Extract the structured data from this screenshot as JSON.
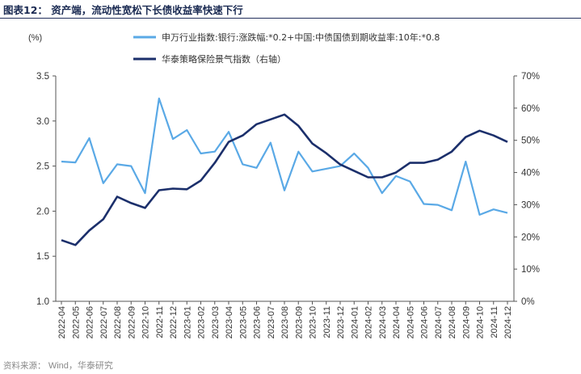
{
  "title": "图表12：  资产端，流动性宽松下长债收益率快速下行",
  "source": {
    "label": "资料来源：",
    "text": "Wind，华泰研究"
  },
  "colors": {
    "series1": "#5aa9e6",
    "series2": "#1b2f6b",
    "title": "#1a2a52"
  },
  "chart_data": {
    "type": "line",
    "left_unit": "(%)",
    "ylim_left": [
      1.0,
      3.5
    ],
    "yticks_left": [
      "1.0",
      "1.5",
      "2.0",
      "2.5",
      "3.0",
      "3.5"
    ],
    "ylim_right": [
      0,
      70
    ],
    "yticks_right": [
      "0%",
      "10%",
      "20%",
      "30%",
      "40%",
      "50%",
      "60%",
      "70%"
    ],
    "legend_position": "top",
    "grid": false,
    "categories": [
      "2022-04",
      "2022-05",
      "2022-06",
      "2022-07",
      "2022-08",
      "2022-09",
      "2022-10",
      "2022-11",
      "2022-12",
      "2023-01",
      "2023-02",
      "2023-03",
      "2023-04",
      "2023-05",
      "2023-06",
      "2023-07",
      "2023-08",
      "2023-09",
      "2023-10",
      "2023-11",
      "2023-12",
      "2024-01",
      "2024-02",
      "2024-03",
      "2024-04",
      "2024-05",
      "2024-06",
      "2024-07",
      "2024-08",
      "2024-09",
      "2024-10",
      "2024-11",
      "2024-12"
    ],
    "series": [
      {
        "name": "申万行业指数:银行:涨跌幅:*0.2+中国:中债国债到期收益率:10年:*0.8",
        "axis": "left",
        "values": [
          2.55,
          2.54,
          2.81,
          2.31,
          2.52,
          2.5,
          2.2,
          3.25,
          2.8,
          2.9,
          2.64,
          2.66,
          2.88,
          2.52,
          2.48,
          2.76,
          2.23,
          2.66,
          2.44,
          2.47,
          2.5,
          2.64,
          2.48,
          2.2,
          2.39,
          2.33,
          2.08,
          2.07,
          2.01,
          2.55,
          1.96,
          2.02,
          1.98
        ]
      },
      {
        "name": "华泰策略保险景气指数（右轴）",
        "axis": "right",
        "values": [
          19,
          17.5,
          22,
          25.5,
          32.5,
          30.5,
          29,
          34.5,
          35,
          34.8,
          37.5,
          43,
          49.5,
          51.5,
          55,
          56.5,
          58,
          54.5,
          49,
          46,
          42.5,
          40.5,
          38.5,
          38.5,
          40,
          43,
          43,
          44,
          46.5,
          51,
          53,
          51.5,
          49.5
        ]
      }
    ]
  }
}
